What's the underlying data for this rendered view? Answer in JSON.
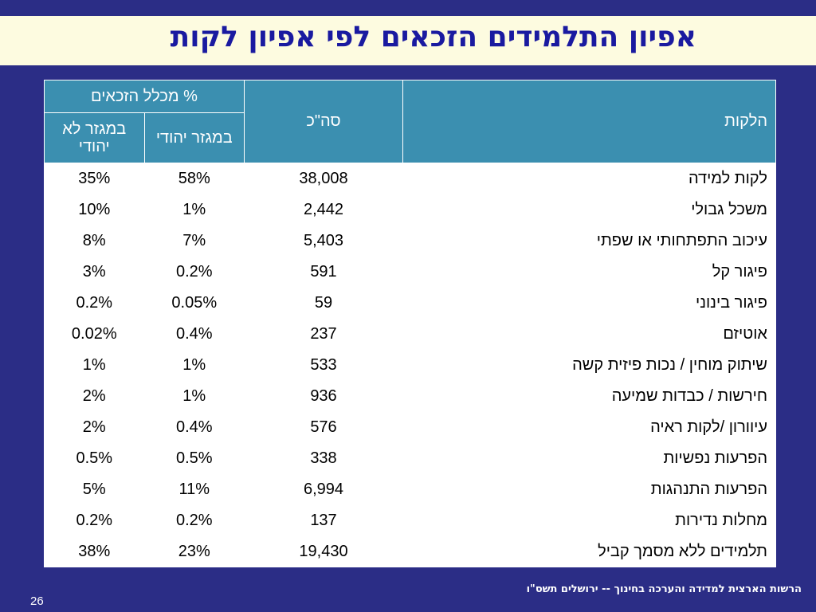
{
  "slide": {
    "title": "אפיון התלמידים הזכאים לפי אפיון לקות",
    "footer": "הרשות הארצית למדידה והערכה בחינוך -- ירושלים תשס\"ו",
    "page_number": "26"
  },
  "table": {
    "header": {
      "subject": "הלקות",
      "total": "סה\"כ",
      "pct_group": "% מכלל הזכאים",
      "jewish": "במגזר יהודי",
      "non_jewish": "במגזר לא  יהודי"
    },
    "rows": [
      {
        "subject": "לקות למידה",
        "total": "38,008",
        "jewish": "58%",
        "non_jewish": "35%"
      },
      {
        "subject": "משכל גבולי",
        "total": "2,442",
        "jewish": "1%",
        "non_jewish": "10%"
      },
      {
        "subject": "עיכוב התפתחותי או שפתי",
        "total": "5,403",
        "jewish": "7%",
        "non_jewish": "8%"
      },
      {
        "subject": "פיגור קל",
        "total": "591",
        "jewish": "0.2%",
        "non_jewish": "3%"
      },
      {
        "subject": "פיגור בינוני",
        "total": "59",
        "jewish": "0.05%",
        "non_jewish": "0.2%"
      },
      {
        "subject": "אוטיזם",
        "total": "237",
        "jewish": "0.4%",
        "non_jewish": "0.02%"
      },
      {
        "subject": "שיתוק מוחין / נכות פיזית קשה",
        "total": "533",
        "jewish": "1%",
        "non_jewish": "1%"
      },
      {
        "subject": "חירשות / כבדות שמיעה",
        "total": "936",
        "jewish": "1%",
        "non_jewish": "2%"
      },
      {
        "subject": "עיוורון /לקות ראיה",
        "total": "576",
        "jewish": "0.4%",
        "non_jewish": "2%"
      },
      {
        "subject": "הפרעות נפשיות",
        "total": "338",
        "jewish": "0.5%",
        "non_jewish": "0.5%"
      },
      {
        "subject": "הפרעות התנהגות",
        "total": "6,994",
        "jewish": "11%",
        "non_jewish": "5%"
      },
      {
        "subject": "מחלות נדירות",
        "total": "137",
        "jewish": "0.2%",
        "non_jewish": "0.2%"
      },
      {
        "subject": "תלמידים ללא מסמך קביל",
        "total": "19,430",
        "jewish": "23%",
        "non_jewish": "38%"
      }
    ]
  },
  "colors": {
    "background": "#2b2d86",
    "title_bar": "#fdfbe0",
    "title_text": "#1a1aa0",
    "header_fill": "#3b8fb0"
  }
}
